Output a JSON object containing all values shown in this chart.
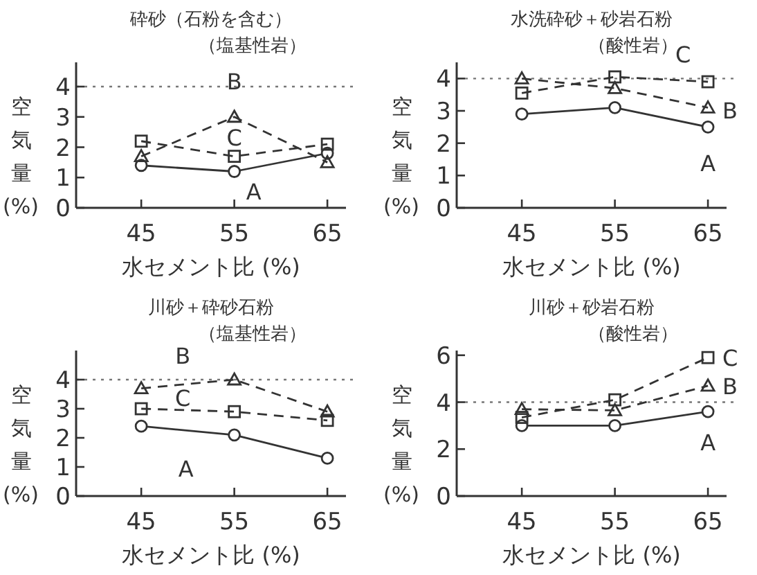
{
  "chart_data": [
    {
      "type": "line",
      "title": "砕砂（石粉を含む）",
      "subtitle": "（塩基性岩）",
      "xlabel": "水セメント比 (%)",
      "ylabel": "空気量(%)",
      "x": [
        45,
        55,
        65
      ],
      "xlim": [
        38,
        67
      ],
      "xticks": [
        45,
        55,
        65
      ],
      "ylim": [
        0,
        4.8
      ],
      "yticks": [
        0,
        1,
        2,
        3,
        4
      ],
      "ref_lines": [
        {
          "axis": "y",
          "value": 4,
          "line_style": "dotted",
          "color": "#777777"
        }
      ],
      "series": [
        {
          "name": "A",
          "color": "#333333",
          "marker": "circle",
          "line_style": "solid",
          "values": [
            1.4,
            1.2,
            1.8
          ]
        },
        {
          "name": "B",
          "color": "#333333",
          "marker": "triangle",
          "line_style": "dashed",
          "values": [
            1.7,
            3.0,
            1.5
          ]
        },
        {
          "name": "C",
          "color": "#333333",
          "marker": "square",
          "line_style": "dashed",
          "values": [
            2.2,
            1.7,
            2.1
          ]
        }
      ]
    },
    {
      "type": "line",
      "title": "水洗砕砂＋砂岩石粉",
      "subtitle": "（酸性岩）",
      "xlabel": "水セメント比 (%)",
      "ylabel": "空気量(%)",
      "x": [
        45,
        55,
        65
      ],
      "xlim": [
        38,
        67
      ],
      "xticks": [
        45,
        55,
        65
      ],
      "ylim": [
        0,
        4.5
      ],
      "yticks": [
        0,
        1,
        2,
        3,
        4
      ],
      "ref_lines": [
        {
          "axis": "y",
          "value": 4,
          "line_style": "dotted",
          "color": "#777777"
        }
      ],
      "series": [
        {
          "name": "A",
          "color": "#333333",
          "marker": "circle",
          "line_style": "solid",
          "values": [
            2.9,
            3.1,
            2.5
          ]
        },
        {
          "name": "B",
          "color": "#333333",
          "marker": "triangle",
          "line_style": "dashed",
          "values": [
            4.0,
            3.7,
            3.1
          ]
        },
        {
          "name": "C",
          "color": "#333333",
          "marker": "square",
          "line_style": "dashed",
          "values": [
            3.55,
            4.05,
            3.9
          ]
        }
      ]
    },
    {
      "type": "line",
      "title": "川砂＋砕砂石粉",
      "subtitle": "（塩基性岩）",
      "xlabel": "水セメント比 (%)",
      "ylabel": "空気量(%)",
      "x": [
        45,
        55,
        65
      ],
      "xlim": [
        38,
        67
      ],
      "xticks": [
        45,
        55,
        65
      ],
      "ylim": [
        0,
        5
      ],
      "yticks": [
        0,
        1,
        2,
        3,
        4
      ],
      "ref_lines": [
        {
          "axis": "y",
          "value": 4,
          "line_style": "dotted",
          "color": "#777777"
        }
      ],
      "series": [
        {
          "name": "A",
          "color": "#333333",
          "marker": "circle",
          "line_style": "solid",
          "values": [
            2.4,
            2.1,
            1.3
          ]
        },
        {
          "name": "B",
          "color": "#333333",
          "marker": "triangle",
          "line_style": "dashed",
          "values": [
            3.7,
            4.0,
            2.9
          ]
        },
        {
          "name": "C",
          "color": "#333333",
          "marker": "square",
          "line_style": "dashed",
          "values": [
            3.0,
            2.9,
            2.6
          ]
        }
      ]
    },
    {
      "type": "line",
      "title": "川砂＋砂岩石粉",
      "subtitle": "（酸性岩）",
      "xlabel": "水セメント比 (%)",
      "ylabel": "空気量(%)",
      "x": [
        45,
        55,
        65
      ],
      "xlim": [
        38,
        67
      ],
      "xticks": [
        45,
        55,
        65
      ],
      "ylim": [
        0,
        6.2
      ],
      "yticks": [
        0,
        2,
        4,
        6
      ],
      "ref_lines": [
        {
          "axis": "y",
          "value": 4,
          "line_style": "dotted",
          "color": "#777777"
        }
      ],
      "series": [
        {
          "name": "A",
          "color": "#333333",
          "marker": "circle",
          "line_style": "solid",
          "values": [
            3.0,
            3.0,
            3.6
          ]
        },
        {
          "name": "B",
          "color": "#333333",
          "marker": "triangle",
          "line_style": "dashed",
          "values": [
            3.7,
            3.65,
            4.7
          ]
        },
        {
          "name": "C",
          "color": "#333333",
          "marker": "square",
          "line_style": "dashed",
          "values": [
            3.35,
            4.1,
            5.9
          ]
        }
      ]
    }
  ]
}
